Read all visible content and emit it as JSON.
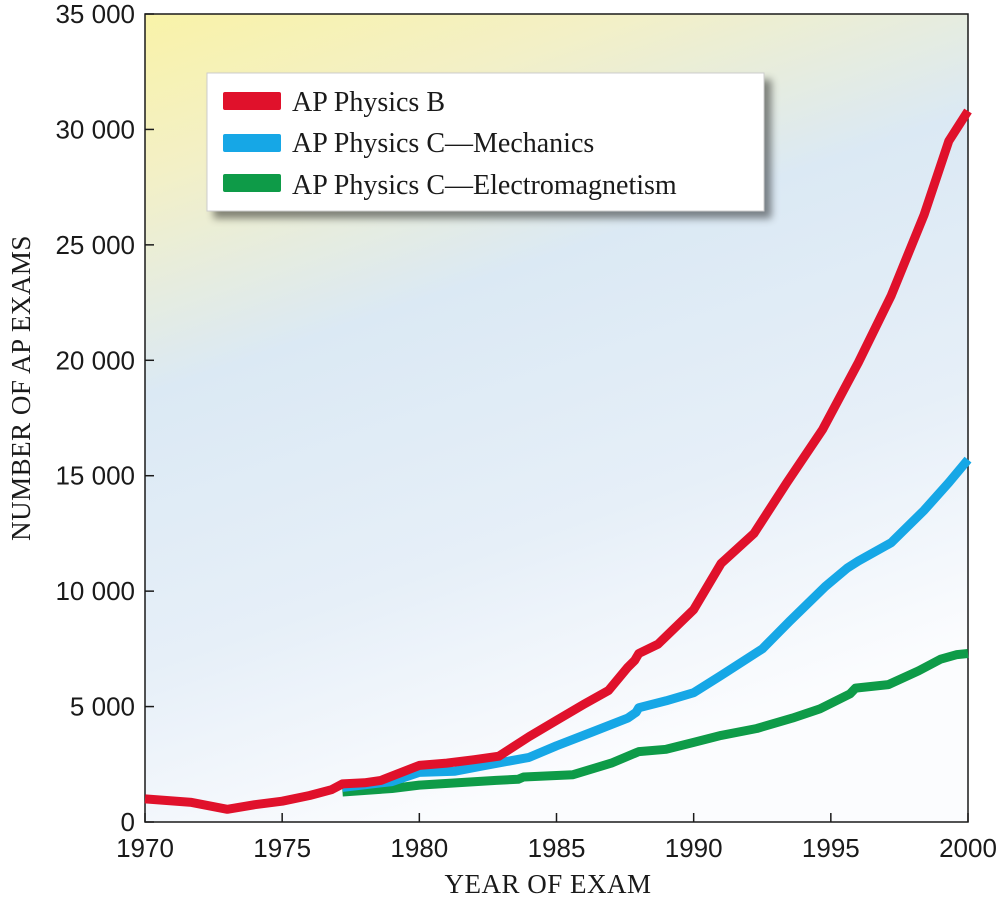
{
  "chart_data": {
    "type": "line",
    "title": "",
    "xlabel": "YEAR OF EXAM",
    "ylabel": "NUMBER OF AP EXAMS",
    "xlim": [
      1970,
      2000
    ],
    "ylim": [
      0,
      35000
    ],
    "x_ticks": [
      1970,
      1975,
      1980,
      1985,
      1990,
      1995,
      2000
    ],
    "y_ticks": [
      0,
      5000,
      10000,
      15000,
      20000,
      25000,
      30000,
      35000
    ],
    "x_tick_labels": [
      "1970",
      "1975",
      "1980",
      "1985",
      "1990",
      "1995",
      "2000"
    ],
    "y_tick_labels": [
      "0",
      "5 000",
      "10 000",
      "15 000",
      "20 000",
      "25 000",
      "30 000",
      "35 000"
    ],
    "grid": false,
    "legend_position": "top-left",
    "series": [
      {
        "name": "AP Physics B",
        "color": "#e0112b",
        "x": [
          1970,
          1971.7,
          1973,
          1974,
          1975,
          1976,
          1976.8,
          1977.2,
          1978,
          1978.6,
          1980,
          1981,
          1982,
          1982.9,
          1984,
          1985,
          1986,
          1986.9,
          1987.6,
          1987.85,
          1988,
          1988.7,
          1990,
          1991,
          1992.2,
          1993.4,
          1994.7,
          1996,
          1997.2,
          1998.4,
          1999.3,
          2000
        ],
        "values": [
          1000,
          850,
          550,
          750,
          900,
          1150,
          1400,
          1650,
          1700,
          1800,
          2450,
          2550,
          2700,
          2850,
          3700,
          4400,
          5100,
          5700,
          6700,
          7000,
          7300,
          7700,
          9200,
          11200,
          12500,
          14700,
          17000,
          19900,
          22800,
          26300,
          29500,
          30800
        ]
      },
      {
        "name": "AP Physics C—Mechanics",
        "color": "#16a7e6",
        "x": [
          1977.2,
          1979,
          1980,
          1981.3,
          1982.4,
          1984,
          1985,
          1986.3,
          1987.6,
          1987.9,
          1988,
          1989,
          1990,
          1991,
          1992.5,
          1993.5,
          1994.8,
          1995.6,
          1996,
          1997.2,
          1998.4,
          1999.3,
          2000
        ],
        "values": [
          1500,
          1750,
          2150,
          2200,
          2450,
          2800,
          3300,
          3900,
          4500,
          4750,
          4950,
          5250,
          5600,
          6350,
          7500,
          8700,
          10200,
          11000,
          11300,
          12100,
          13500,
          14700,
          15700
        ]
      },
      {
        "name": "AP Physics C—Electromagnetism",
        "color": "#0e9b48",
        "x": [
          1977.2,
          1979,
          1980,
          1981.4,
          1982.8,
          1983.6,
          1983.8,
          1985.6,
          1987,
          1988,
          1989,
          1990,
          1991,
          1992.3,
          1993.6,
          1994.6,
          1995.7,
          1995.9,
          1997.1,
          1998.2,
          1999,
          1999.6,
          2000
        ],
        "values": [
          1300,
          1450,
          1600,
          1700,
          1800,
          1850,
          1950,
          2050,
          2550,
          3050,
          3150,
          3450,
          3750,
          4050,
          4500,
          4900,
          5550,
          5800,
          5950,
          6550,
          7050,
          7250,
          7300
        ]
      }
    ]
  }
}
